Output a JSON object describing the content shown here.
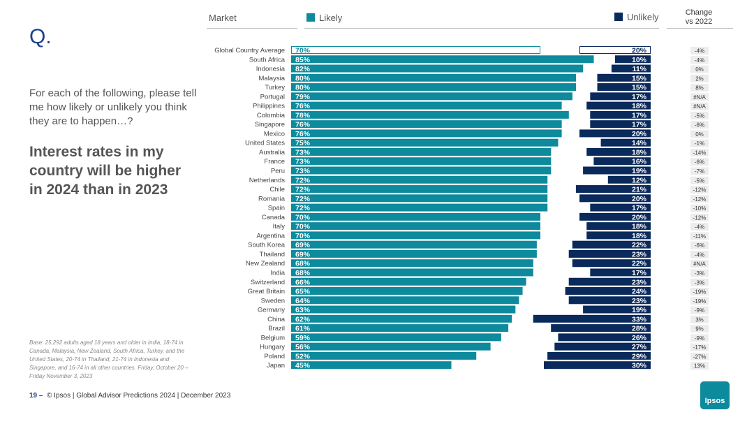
{
  "question_mark": "Q.",
  "question": "For each of the following, please tell me how likely or unlikely you think they are to happen…?",
  "headline": "Interest rates in my country will be higher in 2024 than in 2023",
  "base_note": "Base: 25,292 adults aged 18 years and older in India, 18-74 in Canada, Malaysia, New Zealand, South Africa, Turkey, and the United States, 20-74 in Thailand, 21-74 in Indonesia and Singapore, and 16-74 in all other countries. Friday, October 20 – Friday November 3, 2023",
  "footer": {
    "page": "19 –",
    "text": "© Ipsos | Global Advisor Predictions 2024 | December 2023"
  },
  "logo_text": "Ipsos",
  "headers": {
    "market": "Market",
    "likely": "Likely",
    "unlikely": "Unlikely",
    "change_line1": "Change",
    "change_line2": "vs 2022"
  },
  "colors": {
    "likely": "#0e8a9d",
    "unlikely": "#0b2a5c",
    "change_bg": "#ececec",
    "accent": "#1c3f94"
  },
  "chart_data": {
    "type": "bar",
    "title": "Interest rates in my country will be higher in 2024 than in 2023",
    "categories": [
      "Global Country Average",
      "South Africa",
      "Indonesia",
      "Malaysia",
      "Turkey",
      "Portugal",
      "Philippines",
      "Colombia",
      "Singapore",
      "Mexico",
      "United States",
      "Australia",
      "France",
      "Peru",
      "Netherlands",
      "Chile",
      "Romania",
      "Spain",
      "Canada",
      "Italy",
      "Argentina",
      "South Korea",
      "Thailand",
      "New Zealand",
      "India",
      "Switzerland",
      "Great Britain",
      "Sweden",
      "Germany",
      "China",
      "Brazil",
      "Belgium",
      "Hungary",
      "Poland",
      "Japan"
    ],
    "series": [
      {
        "name": "Likely",
        "values": [
          70,
          85,
          82,
          80,
          80,
          79,
          76,
          78,
          76,
          76,
          75,
          73,
          73,
          73,
          72,
          72,
          72,
          72,
          70,
          70,
          70,
          69,
          69,
          68,
          68,
          66,
          65,
          64,
          63,
          62,
          61,
          59,
          56,
          52,
          45
        ]
      },
      {
        "name": "Unlikely",
        "values": [
          20,
          10,
          11,
          15,
          15,
          17,
          18,
          17,
          17,
          20,
          14,
          18,
          16,
          19,
          12,
          21,
          20,
          17,
          20,
          18,
          18,
          22,
          23,
          22,
          17,
          23,
          24,
          23,
          19,
          33,
          28,
          26,
          27,
          29,
          30
        ]
      }
    ],
    "change_vs_2022": [
      "-4%",
      "-4%",
      "0%",
      "2%",
      "8%",
      "#N/A",
      "#N/A",
      "-5%",
      "-6%",
      "0%",
      "-1%",
      "-14%",
      "-6%",
      "-7%",
      "-5%",
      "-12%",
      "-12%",
      "-10%",
      "-12%",
      "-4%",
      "-11%",
      "-6%",
      "-4%",
      "#N/A",
      "-3%",
      "-3%",
      "-19%",
      "-19%",
      "-9%",
      "3%",
      "9%",
      "-9%",
      "-17%",
      "-27%",
      "13%"
    ],
    "xlim": [
      0,
      100
    ],
    "legend": [
      "Likely",
      "Unlikely"
    ]
  }
}
